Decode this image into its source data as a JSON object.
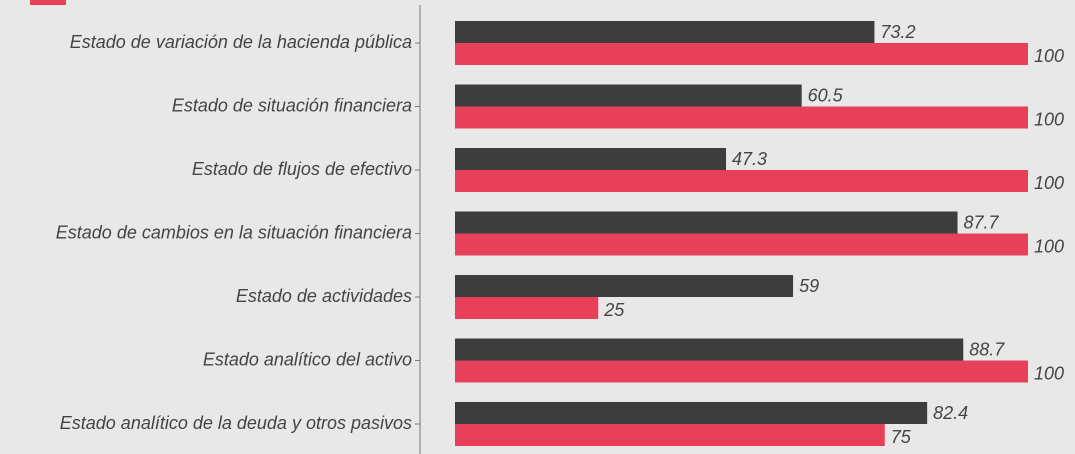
{
  "chart_data": {
    "type": "bar",
    "orientation": "horizontal",
    "categories": [
      "Estado de variación de la hacienda pública",
      "Estado de situación financiera",
      "Estado de flujos de efectivo",
      "Estado de cambios en la situación financiera",
      "Estado de actividades",
      "Estado analítico del activo",
      "Estado analítico de la deuda y otros pasivos"
    ],
    "series": [
      {
        "color": "#3d3d3d",
        "values": [
          73.2,
          60.5,
          47.3,
          87.7,
          59,
          88.7,
          82.4
        ]
      },
      {
        "color": "#e8405a",
        "values": [
          100,
          100,
          100,
          100,
          25,
          100,
          75
        ]
      }
    ],
    "xlim": [
      0,
      100
    ]
  }
}
